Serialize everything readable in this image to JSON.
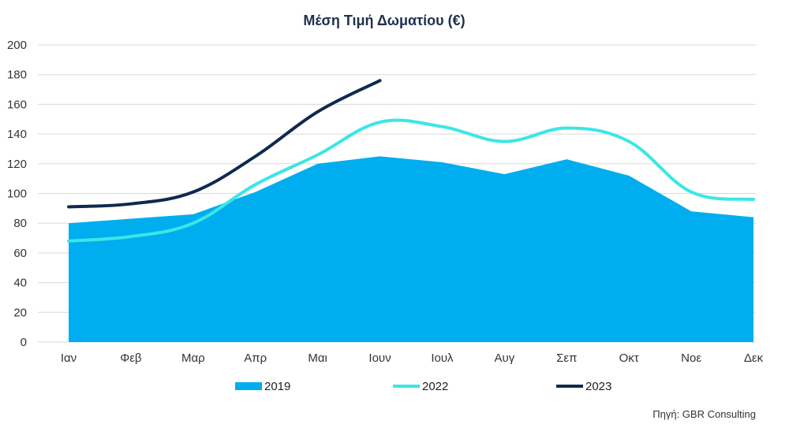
{
  "chart_data": {
    "type": "area",
    "title": "Μέση Τιμή Δωματίου (€)",
    "source": "Πηγή: GBR Consulting",
    "categories": [
      "Ιαν",
      "Φεβ",
      "Μαρ",
      "Απρ",
      "Μαι",
      "Ιουν",
      "Ιουλ",
      "Αυγ",
      "Σεπ",
      "Οκτ",
      "Νοε",
      "Δεκ"
    ],
    "ylim": [
      0,
      200
    ],
    "yticks": [
      0,
      20,
      40,
      60,
      80,
      100,
      120,
      140,
      160,
      180,
      200
    ],
    "grid": true,
    "legend_position": "bottom",
    "series": [
      {
        "name": "2019",
        "kind": "area",
        "color": "#00aeef",
        "values": [
          80,
          83,
          86,
          101,
          120,
          125,
          121,
          113,
          123,
          112,
          88,
          84
        ]
      },
      {
        "name": "2022",
        "kind": "line",
        "color": "#3ce6e6",
        "values": [
          68,
          71,
          80,
          106,
          126,
          148,
          145,
          135,
          144,
          135,
          101,
          96
        ]
      },
      {
        "name": "2023",
        "kind": "line",
        "color": "#0e2a4e",
        "values": [
          91,
          93,
          101,
          125,
          155,
          176,
          null,
          null,
          null,
          null,
          null,
          null
        ]
      }
    ]
  }
}
